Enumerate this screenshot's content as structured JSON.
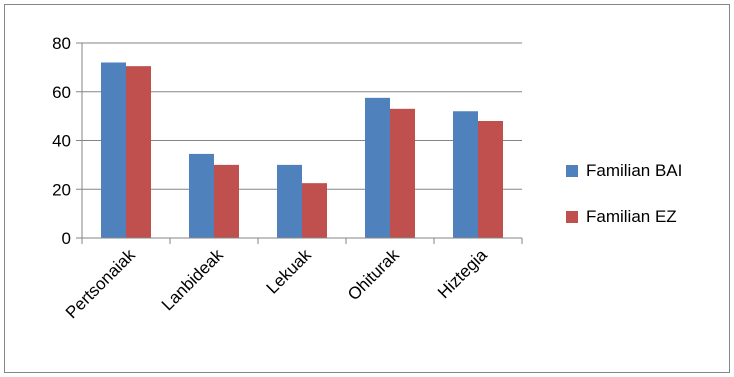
{
  "chart_data": {
    "type": "bar",
    "title": "",
    "xlabel": "",
    "ylabel": "",
    "categories": [
      "Pertsonaiak",
      "Lanbideak",
      "Lekuak",
      "Ohiturak",
      "Hiztegia"
    ],
    "series": [
      {
        "name": "Familian BAI",
        "values": [
          72,
          34.5,
          30,
          57.5,
          52
        ],
        "color": "#4F81BD"
      },
      {
        "name": "Familian EZ",
        "values": [
          70.5,
          30,
          22.5,
          53,
          48
        ],
        "color": "#C0504D"
      }
    ],
    "ylim": [
      0,
      80
    ],
    "yticks": [
      0,
      20,
      40,
      60,
      80
    ],
    "grid": true,
    "legend_position": "right"
  }
}
